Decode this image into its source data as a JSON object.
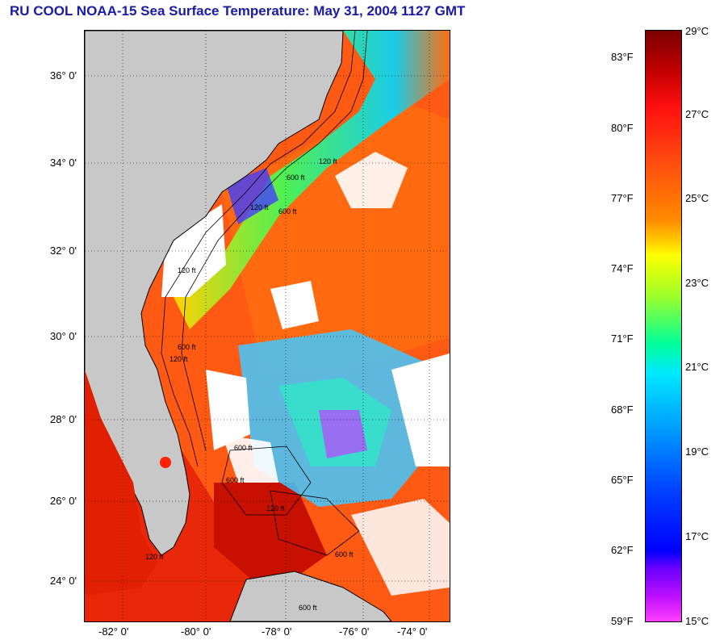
{
  "title": "RU COOL  NOAA-15  Sea Surface Temperature:  May 31, 2004 1127 GMT",
  "map": {
    "lat_labels": [
      "36° 0'",
      "34° 0'",
      "32° 0'",
      "30° 0'",
      "28° 0'",
      "26° 0'",
      "24° 0'"
    ],
    "lon_labels": [
      "-82° 0'",
      "-80° 0'",
      "-78° 0'",
      "-76° 0'",
      "-74° 0'"
    ],
    "contour_labels": [
      "120 ft",
      "600 ft",
      "120 ft",
      "600 ft",
      "120 ft",
      "600 ft",
      "120 ft",
      "600 ft",
      "600 ft",
      "120 ft",
      "120 ft",
      "600 ft",
      "600 ft"
    ],
    "colors": {
      "land": "#c8c8c8",
      "cloud": "#ffffff",
      "warm": "#ff5a14"
    }
  },
  "colorbar": {
    "celsius": [
      "29°C",
      "27°C",
      "25°C",
      "23°C",
      "21°C",
      "19°C",
      "17°C",
      "15°C"
    ],
    "fahrenheit": [
      "83°F",
      "80°F",
      "77°F",
      "74°F",
      "71°F",
      "68°F",
      "65°F",
      "62°F",
      "59°F"
    ]
  }
}
